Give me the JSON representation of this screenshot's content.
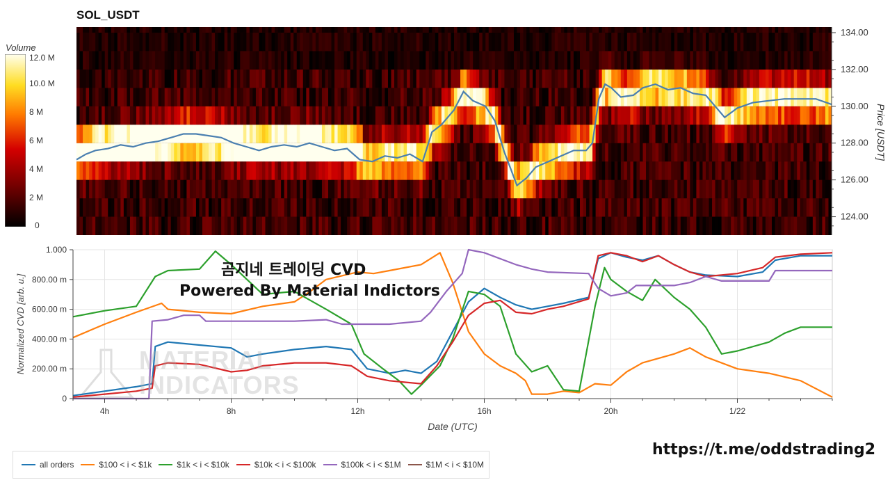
{
  "title": "SOL_USDT",
  "colorbar": {
    "label": "Volume",
    "ticks": [
      "12.0 M",
      "10.0 M",
      "8 M",
      "6 M",
      "4 M",
      "2 M",
      "0"
    ]
  },
  "overlay": {
    "line1": "곰지네 트레이딩 CVD",
    "line2": "Powered By Material Indictors",
    "watermark_line1": "MATERIAL",
    "watermark_line2": "INDICATORS",
    "link": "https://t.me/oddstrading2"
  },
  "chart_data": [
    {
      "type": "heatmap",
      "name": "price-volume-heatmap",
      "ylabel": "Price [USDT]",
      "y_ticks": [
        "134.00",
        "132.00",
        "130.00",
        "128.00",
        "126.00",
        "124.00"
      ],
      "ylim": [
        123,
        134.3
      ],
      "xlim_hours": [
        3,
        27
      ],
      "price_line": [
        [
          3.0,
          127.1
        ],
        [
          3.3,
          127.4
        ],
        [
          3.6,
          127.6
        ],
        [
          4.0,
          127.7
        ],
        [
          4.4,
          127.9
        ],
        [
          4.8,
          127.8
        ],
        [
          5.2,
          128.0
        ],
        [
          5.6,
          128.1
        ],
        [
          6.0,
          128.3
        ],
        [
          6.4,
          128.5
        ],
        [
          6.8,
          128.5
        ],
        [
          7.2,
          128.4
        ],
        [
          7.6,
          128.3
        ],
        [
          8.0,
          128.0
        ],
        [
          8.4,
          127.8
        ],
        [
          8.8,
          127.6
        ],
        [
          9.2,
          127.8
        ],
        [
          9.6,
          127.9
        ],
        [
          10.0,
          127.8
        ],
        [
          10.4,
          128.0
        ],
        [
          10.8,
          127.8
        ],
        [
          11.2,
          127.6
        ],
        [
          11.6,
          127.7
        ],
        [
          12.0,
          127.1
        ],
        [
          12.4,
          127.0
        ],
        [
          12.8,
          127.3
        ],
        [
          13.2,
          127.2
        ],
        [
          13.6,
          127.4
        ],
        [
          14.0,
          127.0
        ],
        [
          14.3,
          128.6
        ],
        [
          14.6,
          129.0
        ],
        [
          15.0,
          129.8
        ],
        [
          15.3,
          130.8
        ],
        [
          15.6,
          130.3
        ],
        [
          16.0,
          130.0
        ],
        [
          16.3,
          129.2
        ],
        [
          16.6,
          127.5
        ],
        [
          16.8,
          126.6
        ],
        [
          17.0,
          125.7
        ],
        [
          17.3,
          126.1
        ],
        [
          17.6,
          126.7
        ],
        [
          18.0,
          127.0
        ],
        [
          18.4,
          127.3
        ],
        [
          18.8,
          127.6
        ],
        [
          19.2,
          127.6
        ],
        [
          19.4,
          128.0
        ],
        [
          19.6,
          130.4
        ],
        [
          19.8,
          131.2
        ],
        [
          20.0,
          131.0
        ],
        [
          20.3,
          130.5
        ],
        [
          20.7,
          130.6
        ],
        [
          21.0,
          131.0
        ],
        [
          21.4,
          131.2
        ],
        [
          21.8,
          130.9
        ],
        [
          22.2,
          131.0
        ],
        [
          22.6,
          130.7
        ],
        [
          23.0,
          130.6
        ],
        [
          23.3,
          130.0
        ],
        [
          23.6,
          129.4
        ],
        [
          24.0,
          129.9
        ],
        [
          24.5,
          130.2
        ],
        [
          25.0,
          130.3
        ],
        [
          25.5,
          130.4
        ],
        [
          26.0,
          130.4
        ],
        [
          26.5,
          130.4
        ],
        [
          27.0,
          130.1
        ]
      ],
      "color": "#4a7fb0"
    },
    {
      "type": "line",
      "xlabel": "Date (UTC)",
      "ylabel": "Normalized CVD [arb. u.]",
      "x_ticks": [
        "4h",
        "8h",
        "12h",
        "16h",
        "20h",
        "1/22"
      ],
      "x_tick_hours": [
        4,
        8,
        12,
        16,
        20,
        24
      ],
      "y_ticks": [
        "1.000",
        "800.00 m",
        "600.00 m",
        "400.00 m",
        "200.00 m",
        "0"
      ],
      "ylim": [
        0,
        1
      ],
      "xlim_hours": [
        3,
        27
      ],
      "series": [
        {
          "name": "all orders",
          "color": "#1f77b4",
          "values": [
            [
              3,
              0.02
            ],
            [
              4,
              0.05
            ],
            [
              5,
              0.08
            ],
            [
              5.5,
              0.1
            ],
            [
              5.6,
              0.35
            ],
            [
              6,
              0.38
            ],
            [
              7,
              0.36
            ],
            [
              8,
              0.34
            ],
            [
              8.5,
              0.28
            ],
            [
              9,
              0.3
            ],
            [
              10,
              0.33
            ],
            [
              11,
              0.35
            ],
            [
              11.8,
              0.33
            ],
            [
              12.3,
              0.2
            ],
            [
              13,
              0.17
            ],
            [
              13.5,
              0.19
            ],
            [
              14,
              0.17
            ],
            [
              14.5,
              0.25
            ],
            [
              15,
              0.45
            ],
            [
              15.5,
              0.65
            ],
            [
              16,
              0.74
            ],
            [
              16.5,
              0.68
            ],
            [
              17,
              0.63
            ],
            [
              17.5,
              0.6
            ],
            [
              18,
              0.62
            ],
            [
              18.5,
              0.64
            ],
            [
              19.3,
              0.68
            ],
            [
              19.6,
              0.94
            ],
            [
              20,
              0.98
            ],
            [
              20.5,
              0.95
            ],
            [
              21,
              0.93
            ],
            [
              21.5,
              0.96
            ],
            [
              22,
              0.9
            ],
            [
              22.5,
              0.85
            ],
            [
              23,
              0.83
            ],
            [
              24,
              0.82
            ],
            [
              24.8,
              0.85
            ],
            [
              25.2,
              0.93
            ],
            [
              26,
              0.96
            ],
            [
              27,
              0.96
            ]
          ]
        },
        {
          "name": "$100 < i < $1k",
          "color": "#ff7f0e",
          "values": [
            [
              3,
              0.41
            ],
            [
              4,
              0.5
            ],
            [
              5,
              0.58
            ],
            [
              5.8,
              0.64
            ],
            [
              6,
              0.6
            ],
            [
              7,
              0.58
            ],
            [
              8,
              0.57
            ],
            [
              9,
              0.62
            ],
            [
              10,
              0.65
            ],
            [
              10.5,
              0.72
            ],
            [
              11,
              0.8
            ],
            [
              12,
              0.85
            ],
            [
              12.5,
              0.84
            ],
            [
              13,
              0.86
            ],
            [
              14,
              0.9
            ],
            [
              14.6,
              0.98
            ],
            [
              15,
              0.78
            ],
            [
              15.5,
              0.45
            ],
            [
              16,
              0.3
            ],
            [
              16.5,
              0.22
            ],
            [
              17,
              0.17
            ],
            [
              17.3,
              0.12
            ],
            [
              17.5,
              0.03
            ],
            [
              18,
              0.03
            ],
            [
              18.5,
              0.05
            ],
            [
              19,
              0.04
            ],
            [
              19.5,
              0.1
            ],
            [
              20,
              0.09
            ],
            [
              20.5,
              0.18
            ],
            [
              21,
              0.24
            ],
            [
              22,
              0.3
            ],
            [
              22.5,
              0.34
            ],
            [
              23,
              0.28
            ],
            [
              24,
              0.2
            ],
            [
              25,
              0.17
            ],
            [
              26,
              0.12
            ],
            [
              27,
              0.01
            ]
          ]
        },
        {
          "name": "$1k < i < $10k",
          "color": "#2ca02c",
          "values": [
            [
              3,
              0.55
            ],
            [
              4,
              0.59
            ],
            [
              5,
              0.62
            ],
            [
              5.6,
              0.82
            ],
            [
              6,
              0.86
            ],
            [
              7,
              0.87
            ],
            [
              7.5,
              0.99
            ],
            [
              8,
              0.9
            ],
            [
              9,
              0.7
            ],
            [
              10,
              0.72
            ],
            [
              11,
              0.6
            ],
            [
              11.8,
              0.5
            ],
            [
              12.2,
              0.3
            ],
            [
              12.8,
              0.2
            ],
            [
              13.3,
              0.12
            ],
            [
              13.7,
              0.03
            ],
            [
              14,
              0.09
            ],
            [
              14.6,
              0.22
            ],
            [
              15,
              0.4
            ],
            [
              15.5,
              0.72
            ],
            [
              16,
              0.7
            ],
            [
              16.5,
              0.62
            ],
            [
              17,
              0.3
            ],
            [
              17.5,
              0.18
            ],
            [
              18,
              0.22
            ],
            [
              18.5,
              0.06
            ],
            [
              19,
              0.05
            ],
            [
              19.5,
              0.62
            ],
            [
              19.8,
              0.88
            ],
            [
              20,
              0.8
            ],
            [
              20.5,
              0.72
            ],
            [
              21,
              0.66
            ],
            [
              21.4,
              0.8
            ],
            [
              22,
              0.68
            ],
            [
              22.5,
              0.6
            ],
            [
              23,
              0.48
            ],
            [
              23.5,
              0.3
            ],
            [
              24,
              0.32
            ],
            [
              25,
              0.38
            ],
            [
              25.5,
              0.44
            ],
            [
              26,
              0.48
            ],
            [
              27,
              0.48
            ]
          ]
        },
        {
          "name": "$10k < i < $100k",
          "color": "#d62728",
          "values": [
            [
              3,
              0.01
            ],
            [
              4,
              0.03
            ],
            [
              5,
              0.05
            ],
            [
              5.5,
              0.07
            ],
            [
              5.6,
              0.22
            ],
            [
              6,
              0.24
            ],
            [
              7,
              0.23
            ],
            [
              8,
              0.18
            ],
            [
              8.5,
              0.19
            ],
            [
              9,
              0.22
            ],
            [
              10,
              0.24
            ],
            [
              11,
              0.24
            ],
            [
              11.8,
              0.22
            ],
            [
              12.3,
              0.15
            ],
            [
              13,
              0.12
            ],
            [
              14,
              0.1
            ],
            [
              14.5,
              0.22
            ],
            [
              15,
              0.38
            ],
            [
              15.5,
              0.56
            ],
            [
              16,
              0.64
            ],
            [
              16.5,
              0.66
            ],
            [
              17,
              0.58
            ],
            [
              17.5,
              0.57
            ],
            [
              18,
              0.6
            ],
            [
              18.5,
              0.62
            ],
            [
              19.3,
              0.67
            ],
            [
              19.6,
              0.96
            ],
            [
              20,
              0.98
            ],
            [
              20.5,
              0.96
            ],
            [
              21,
              0.92
            ],
            [
              21.5,
              0.96
            ],
            [
              22,
              0.9
            ],
            [
              22.5,
              0.85
            ],
            [
              23,
              0.82
            ],
            [
              24,
              0.84
            ],
            [
              24.8,
              0.88
            ],
            [
              25.2,
              0.95
            ],
            [
              26,
              0.97
            ],
            [
              27,
              0.98
            ]
          ]
        },
        {
          "name": "$100k < i < $1M",
          "color": "#9467bd",
          "values": [
            [
              3,
              0.0
            ],
            [
              5.4,
              0.0
            ],
            [
              5.5,
              0.52
            ],
            [
              6,
              0.53
            ],
            [
              6.5,
              0.56
            ],
            [
              7,
              0.56
            ],
            [
              7.2,
              0.52
            ],
            [
              9,
              0.52
            ],
            [
              10,
              0.52
            ],
            [
              11,
              0.53
            ],
            [
              11.5,
              0.5
            ],
            [
              13,
              0.5
            ],
            [
              14,
              0.52
            ],
            [
              14.3,
              0.58
            ],
            [
              14.8,
              0.72
            ],
            [
              15.3,
              0.84
            ],
            [
              15.5,
              1.0
            ],
            [
              16,
              0.98
            ],
            [
              17,
              0.9
            ],
            [
              17.5,
              0.87
            ],
            [
              18,
              0.85
            ],
            [
              19.3,
              0.84
            ],
            [
              19.6,
              0.74
            ],
            [
              20,
              0.69
            ],
            [
              20.5,
              0.71
            ],
            [
              20.8,
              0.76
            ],
            [
              22,
              0.76
            ],
            [
              22.5,
              0.78
            ],
            [
              23,
              0.82
            ],
            [
              23.5,
              0.79
            ],
            [
              25,
              0.79
            ],
            [
              25.2,
              0.86
            ],
            [
              27,
              0.86
            ]
          ]
        },
        {
          "name": "$1M < i < $10M",
          "color": "#8c564b",
          "values": []
        }
      ]
    }
  ],
  "legend": {
    "items": [
      {
        "label": "all orders",
        "color": "#1f77b4"
      },
      {
        "label": "$100 < i < $1k",
        "color": "#ff7f0e"
      },
      {
        "label": "$1k < i < $10k",
        "color": "#2ca02c"
      },
      {
        "label": "$10k < i < $100k",
        "color": "#d62728"
      },
      {
        "label": "$100k < i < $1M",
        "color": "#9467bd"
      },
      {
        "label": "$1M < i < $10M",
        "color": "#8c564b"
      }
    ]
  }
}
